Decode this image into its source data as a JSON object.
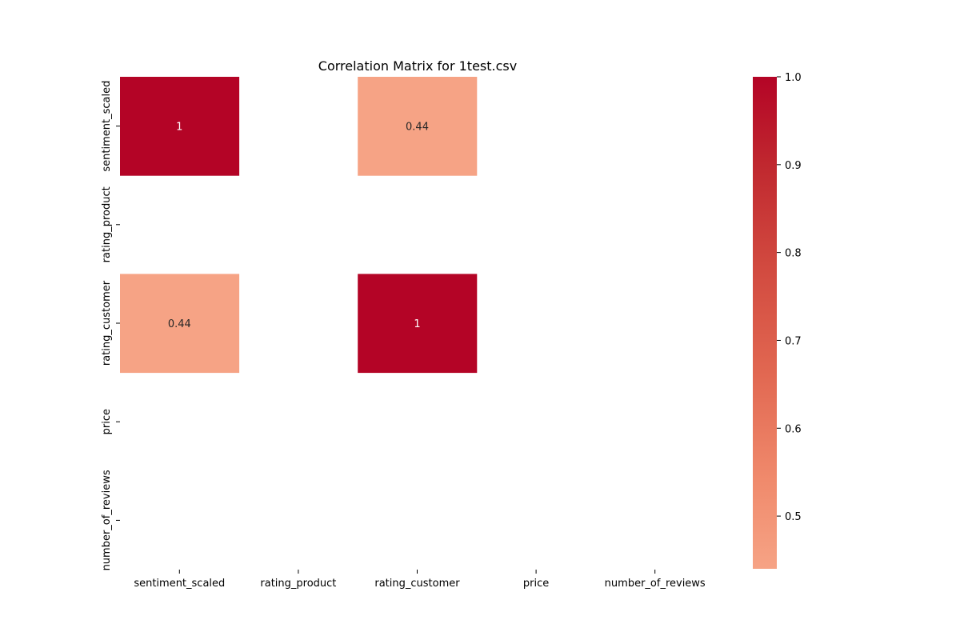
{
  "chart_data": {
    "type": "heatmap",
    "title": "Correlation Matrix for 1test.csv",
    "xlabel": "",
    "ylabel": "",
    "x_labels": [
      "sentiment_scaled",
      "rating_product",
      "rating_customer",
      "price",
      "number_of_reviews"
    ],
    "y_labels": [
      "sentiment_scaled",
      "rating_product",
      "rating_customer",
      "price",
      "number_of_reviews"
    ],
    "values": [
      [
        1,
        null,
        0.44,
        null,
        null
      ],
      [
        null,
        null,
        null,
        null,
        null
      ],
      [
        0.44,
        null,
        1,
        null,
        null
      ],
      [
        null,
        null,
        null,
        null,
        null
      ],
      [
        null,
        null,
        null,
        null,
        null
      ]
    ],
    "annotations": [
      [
        "1",
        "",
        "0.44",
        "",
        ""
      ],
      [
        "",
        "",
        "",
        "",
        ""
      ],
      [
        "0.44",
        "",
        "1",
        "",
        ""
      ],
      [
        "",
        "",
        "",
        "",
        ""
      ],
      [
        "",
        "",
        "",
        "",
        ""
      ]
    ],
    "colormap": "coolwarm",
    "color_range": [
      0.44,
      1.0
    ],
    "colorbar_ticks": [
      0.5,
      0.6,
      0.7,
      0.8,
      0.9,
      1.0
    ],
    "colorbar_tick_labels": [
      "0.5",
      "0.6",
      "0.7",
      "0.8",
      "0.9",
      "1.0"
    ],
    "colors": {
      "low": "#f6a385",
      "high": "#b40426",
      "annotation_dark": "#262626",
      "annotation_light": "#ffffff",
      "text": "#000000"
    }
  }
}
